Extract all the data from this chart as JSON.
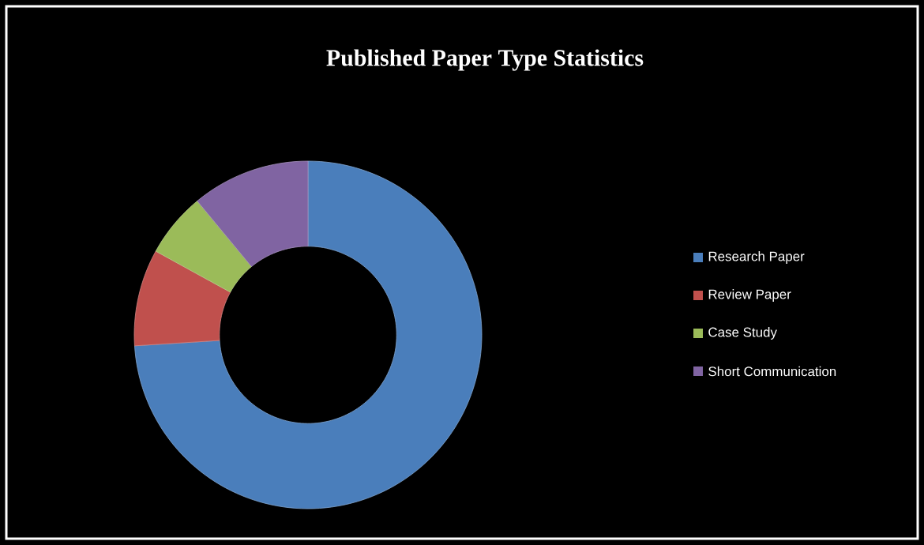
{
  "chart_data": {
    "type": "donut",
    "title": "Published Paper Type Statistics",
    "categories": [
      "Research Paper",
      "Review Paper",
      "Case Study",
      "Short Communication"
    ],
    "values": [
      74,
      9,
      6,
      11
    ],
    "colors": [
      "#4a7ebb",
      "#c0504d",
      "#9bbb59",
      "#8064a2"
    ],
    "legend": "right"
  }
}
